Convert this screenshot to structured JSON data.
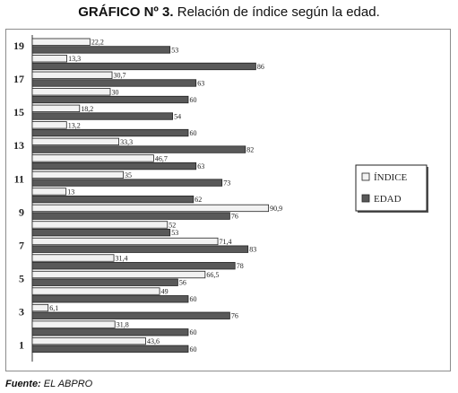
{
  "header": {
    "title_bold": "GRÁFICO Nº 3.",
    "title_rest": " Relación de índice según la edad."
  },
  "footer": {
    "source_label": "Fuente:",
    "source_value": " EL ABPRO"
  },
  "colors": {
    "indice": "#f2f2f2",
    "edad": "#595959",
    "frame": "#8c8c8c"
  },
  "chart_data": {
    "type": "bar",
    "orientation": "horizontal",
    "title": "Relación de índice según la edad.",
    "y_tick_labels": [
      "19",
      "17",
      "15",
      "13",
      "11",
      "9",
      "7",
      "5",
      "3",
      "1"
    ],
    "legend_position": "right",
    "grid": false,
    "series": [
      {
        "name": "ÍNDICE",
        "color": "#f2f2f2"
      },
      {
        "name": "EDAD",
        "color": "#595959"
      }
    ],
    "groups": [
      {
        "indice": 22.2,
        "edad": 53
      },
      {
        "indice": 13.3,
        "edad": 86
      },
      {
        "indice": 30.7,
        "edad": 63
      },
      {
        "indice": 30,
        "edad": 60
      },
      {
        "indice": 18.2,
        "edad": 54
      },
      {
        "indice": 13.2,
        "edad": 60
      },
      {
        "indice": 33.3,
        "edad": 82
      },
      {
        "indice": 46.7,
        "edad": 63
      },
      {
        "indice": 35,
        "edad": 73
      },
      {
        "indice": 13,
        "edad": 62
      },
      {
        "indice": 90.9,
        "edad": 76
      },
      {
        "indice": 52,
        "edad": 53
      },
      {
        "indice": 71.4,
        "edad": 83
      },
      {
        "indice": 31.4,
        "edad": 78
      },
      {
        "indice": 66.5,
        "edad": 56
      },
      {
        "indice": 49,
        "edad": 60
      },
      {
        "indice": 6.1,
        "edad": 76
      },
      {
        "indice": 31.8,
        "edad": 60
      },
      {
        "indice": 43.6,
        "edad": 60
      }
    ],
    "value_labels": [
      {
        "indice": "22,2",
        "edad": "53"
      },
      {
        "indice": "13,3",
        "edad": "86"
      },
      {
        "indice": "30,7",
        "edad": "63"
      },
      {
        "indice": "30",
        "edad": "60"
      },
      {
        "indice": "18,2",
        "edad": "54"
      },
      {
        "indice": "13,2",
        "edad": "60"
      },
      {
        "indice": "33,3",
        "edad": "82"
      },
      {
        "indice": "46,7",
        "edad": "63"
      },
      {
        "indice": "35",
        "edad": "73"
      },
      {
        "indice": "13",
        "edad": "62"
      },
      {
        "indice": "90,9",
        "edad": "76"
      },
      {
        "indice": "52",
        "edad": "53"
      },
      {
        "indice": "71,4",
        "edad": "83"
      },
      {
        "indice": "31,4",
        "edad": "78"
      },
      {
        "indice": "66,5",
        "edad": "56"
      },
      {
        "indice": "49",
        "edad": "60"
      },
      {
        "indice": "6,1",
        "edad": "76"
      },
      {
        "indice": "31,8",
        "edad": "60"
      },
      {
        "indice": "43,6",
        "edad": "60"
      }
    ]
  }
}
